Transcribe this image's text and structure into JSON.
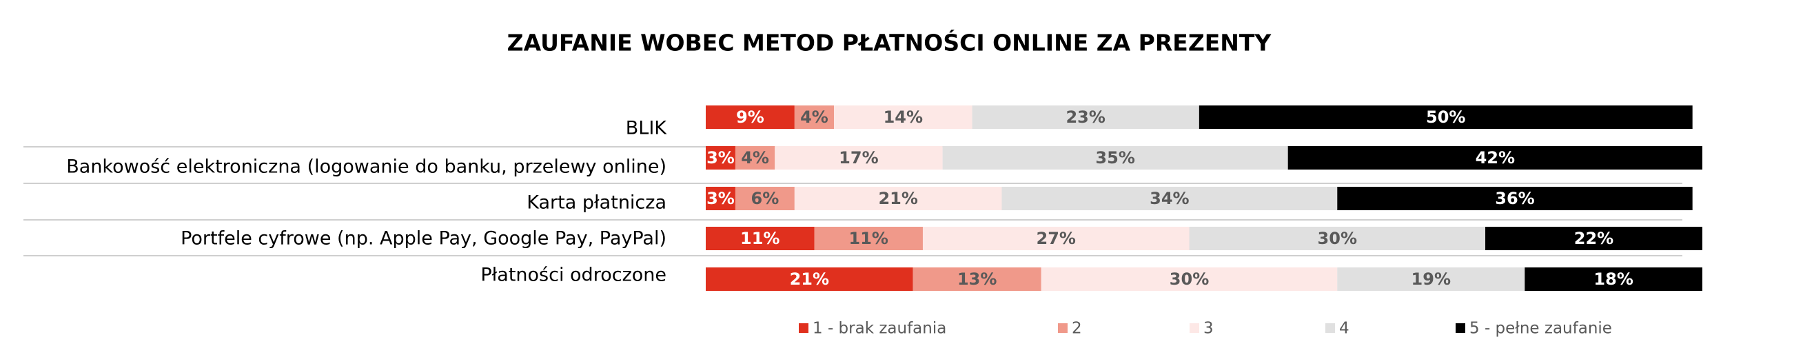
{
  "chart_data": {
    "type": "stacked-bar-horizontal",
    "title": "ZAUFANIE WOBEC METOD PŁATNOŚCI ONLINE ZA PREZENTY",
    "categories": [
      "BLIK",
      "Bankowość elektroniczna (logowanie do banku, przelewy online)",
      "Karta płatnicza",
      "Portfele cyfrowe (np. Apple Pay, Google Pay, PayPal)",
      "Płatności odroczone"
    ],
    "xlim": [
      0,
      101
    ],
    "legend": "bottom",
    "series": [
      {
        "name": "1 - brak zaufania",
        "color": "#e0301e",
        "label_color": "#ffffff",
        "values": [
          9,
          3,
          3,
          11,
          21
        ],
        "value_labels": [
          "9%",
          "3%",
          "3%",
          "11%",
          "21%"
        ]
      },
      {
        "name": "2",
        "color": "#f0998a",
        "label_color": "#595959",
        "values": [
          4,
          4,
          6,
          11,
          13
        ],
        "value_labels": [
          "4%",
          "4%",
          "6%",
          "11%",
          "13%"
        ]
      },
      {
        "name": "3",
        "color": "#fde8e6",
        "label_color": "#595959",
        "values": [
          14,
          17,
          21,
          27,
          30
        ],
        "value_labels": [
          "14%",
          "17%",
          "21%",
          "27%",
          "30%"
        ]
      },
      {
        "name": "4",
        "color": "#e0e0e0",
        "label_color": "#595959",
        "values": [
          23,
          35,
          34,
          30,
          19
        ],
        "value_labels": [
          "23%",
          "35%",
          "34%",
          "30%",
          "19%"
        ]
      },
      {
        "name": "5 - pełne zaufanie",
        "color": "#000000",
        "label_color": "#ffffff",
        "values": [
          50,
          42,
          36,
          22,
          18
        ],
        "value_labels": [
          "50%",
          "42%",
          "36%",
          "22%",
          "18%"
        ]
      }
    ]
  }
}
